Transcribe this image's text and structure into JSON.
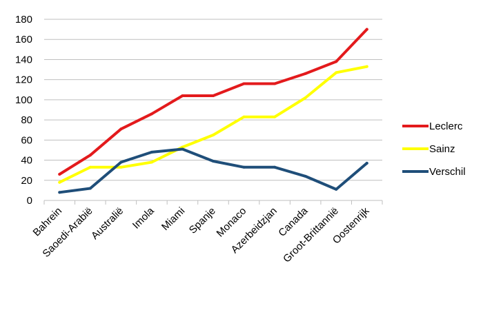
{
  "chart_data": {
    "type": "line",
    "categories": [
      "Bahrein",
      "Saoedi-Arabië",
      "Australië",
      "Imola",
      "Miami",
      "Spanje",
      "Monaco",
      "Azerbeidzjan",
      "Canada",
      "Groot-Brittannië",
      "Oostenrijk"
    ],
    "series": [
      {
        "name": "Leclerc",
        "color": "#e31a1c",
        "values": [
          26,
          45,
          71,
          86,
          104,
          104,
          116,
          116,
          126,
          138,
          170
        ]
      },
      {
        "name": "Sainz",
        "color": "#ffff00",
        "values": [
          18,
          33,
          33,
          38,
          53,
          65,
          83,
          83,
          102,
          127,
          133
        ]
      },
      {
        "name": "Verschil",
        "color": "#1f4e79",
        "values": [
          8,
          12,
          38,
          48,
          51,
          39,
          33,
          33,
          24,
          11,
          37
        ]
      }
    ],
    "ylim": [
      0,
      180
    ],
    "yticks": [
      0,
      20,
      40,
      60,
      80,
      100,
      120,
      140,
      160,
      180
    ],
    "grid": true,
    "legend": "right"
  }
}
